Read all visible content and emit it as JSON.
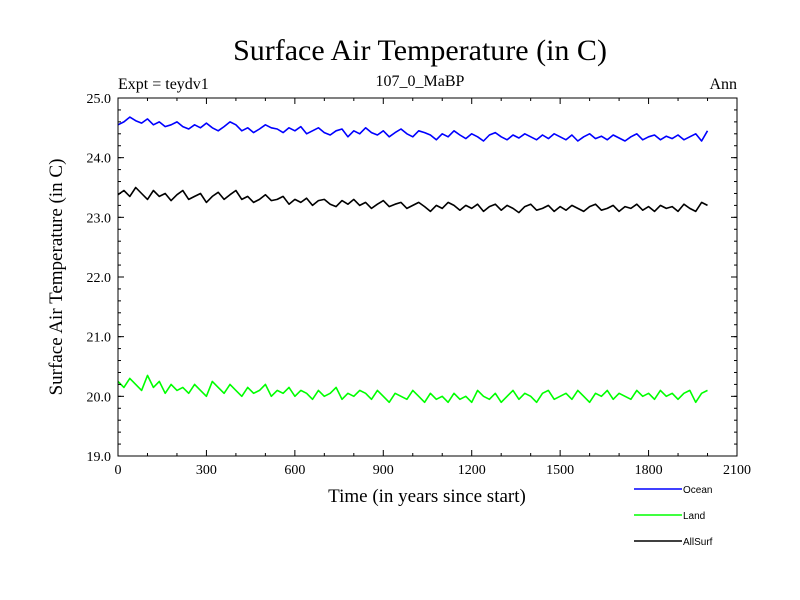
{
  "chart_data": {
    "type": "line",
    "title": "Surface Air Temperature (in C)",
    "subtitle_left": "Expt = teydv1",
    "subtitle_center": "107_0_MaBP",
    "subtitle_right": "Ann",
    "xlabel": "Time (in years since start)",
    "ylabel": "Surface Air Temperature (in C)",
    "xlim": [
      0,
      2100
    ],
    "ylim": [
      19.0,
      25.0
    ],
    "x_ticks": [
      0,
      300,
      600,
      900,
      1200,
      1500,
      1800,
      2100
    ],
    "y_ticks": [
      "19.0",
      "20.0",
      "21.0",
      "22.0",
      "23.0",
      "24.0",
      "25.0"
    ],
    "x_step": 20,
    "series": [
      {
        "name": "Ocean",
        "color": "#0000ff",
        "values": [
          24.55,
          24.6,
          24.68,
          24.62,
          24.58,
          24.65,
          24.55,
          24.6,
          24.52,
          24.55,
          24.6,
          24.52,
          24.48,
          24.55,
          24.5,
          24.58,
          24.5,
          24.45,
          24.52,
          24.6,
          24.55,
          24.45,
          24.5,
          24.42,
          24.48,
          24.55,
          24.5,
          24.48,
          24.42,
          24.5,
          24.45,
          24.52,
          24.4,
          24.45,
          24.5,
          24.42,
          24.38,
          24.45,
          24.48,
          24.35,
          24.45,
          24.4,
          24.5,
          24.42,
          24.38,
          24.45,
          24.35,
          24.42,
          24.48,
          24.4,
          24.35,
          24.45,
          24.42,
          24.38,
          24.3,
          24.4,
          24.35,
          24.45,
          24.38,
          24.32,
          24.4,
          24.35,
          24.28,
          24.38,
          24.42,
          24.35,
          24.3,
          24.38,
          24.33,
          24.4,
          24.35,
          24.3,
          24.38,
          24.32,
          24.4,
          24.35,
          24.3,
          24.38,
          24.28,
          24.35,
          24.4,
          24.32,
          24.36,
          24.3,
          24.38,
          24.33,
          24.28,
          24.35,
          24.4,
          24.3,
          24.35,
          24.38,
          24.3,
          24.36,
          24.32,
          24.38,
          24.3,
          24.35,
          24.4,
          24.28,
          24.45
        ]
      },
      {
        "name": "Land",
        "color": "#00ff00",
        "values": [
          20.25,
          20.15,
          20.3,
          20.2,
          20.1,
          20.35,
          20.15,
          20.25,
          20.05,
          20.2,
          20.1,
          20.15,
          20.05,
          20.2,
          20.1,
          20.0,
          20.25,
          20.15,
          20.05,
          20.2,
          20.1,
          20.0,
          20.15,
          20.05,
          20.1,
          20.2,
          20.0,
          20.1,
          20.05,
          20.15,
          20.0,
          20.1,
          20.05,
          19.95,
          20.1,
          20.0,
          20.05,
          20.15,
          19.95,
          20.05,
          20.0,
          20.1,
          20.05,
          19.95,
          20.1,
          20.0,
          19.9,
          20.05,
          20.0,
          19.95,
          20.1,
          20.0,
          19.9,
          20.05,
          19.95,
          20.0,
          19.9,
          20.05,
          19.95,
          20.0,
          19.9,
          20.1,
          20.0,
          19.95,
          20.05,
          19.9,
          20.0,
          20.1,
          19.95,
          20.05,
          20.0,
          19.9,
          20.05,
          20.1,
          19.95,
          20.0,
          20.05,
          19.95,
          20.1,
          20.0,
          19.9,
          20.05,
          20.0,
          20.1,
          19.95,
          20.05,
          20.0,
          19.95,
          20.1,
          20.0,
          20.05,
          19.95,
          20.1,
          20.0,
          20.05,
          19.95,
          20.05,
          20.1,
          19.9,
          20.05,
          20.1
        ]
      },
      {
        "name": "AllSurf",
        "color": "#000000",
        "values": [
          23.38,
          23.45,
          23.35,
          23.5,
          23.4,
          23.3,
          23.45,
          23.35,
          23.4,
          23.28,
          23.38,
          23.45,
          23.3,
          23.35,
          23.4,
          23.25,
          23.35,
          23.42,
          23.3,
          23.38,
          23.45,
          23.3,
          23.35,
          23.25,
          23.3,
          23.38,
          23.28,
          23.3,
          23.35,
          23.22,
          23.3,
          23.25,
          23.32,
          23.2,
          23.28,
          23.3,
          23.22,
          23.18,
          23.28,
          23.22,
          23.3,
          23.2,
          23.25,
          23.15,
          23.22,
          23.28,
          23.18,
          23.22,
          23.25,
          23.15,
          23.2,
          23.25,
          23.18,
          23.1,
          23.2,
          23.15,
          23.25,
          23.2,
          23.12,
          23.2,
          23.15,
          23.22,
          23.1,
          23.18,
          23.22,
          23.12,
          23.2,
          23.15,
          23.08,
          23.18,
          23.22,
          23.12,
          23.15,
          23.2,
          23.1,
          23.18,
          23.12,
          23.2,
          23.15,
          23.1,
          23.18,
          23.22,
          23.12,
          23.15,
          23.2,
          23.1,
          23.18,
          23.15,
          23.22,
          23.12,
          23.18,
          23.1,
          23.2,
          23.15,
          23.18,
          23.1,
          23.22,
          23.15,
          23.1,
          23.25,
          23.2
        ]
      }
    ]
  }
}
